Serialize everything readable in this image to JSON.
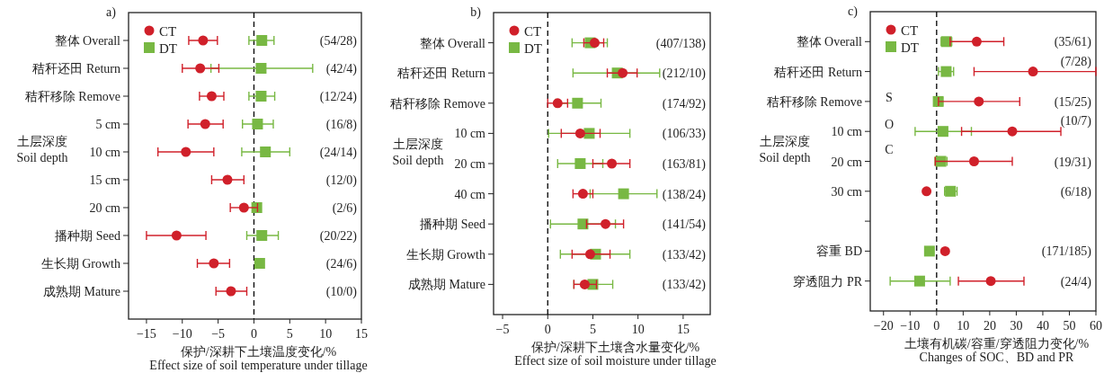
{
  "chart_data": [
    {
      "type": "scatter",
      "orientation": "horizontal",
      "title": "a)",
      "xlabel": "保护/深耕下土壤温度变化/%\nEffect size of soil temperature under tillage",
      "categories": [
        "整体 Overall",
        "秸秆还田 Return",
        "秸秆移除 Remove",
        "5 cm",
        "10 cm",
        "15 cm",
        "20 cm",
        "播种期 Seed",
        "生长期 Growth",
        "成熟期 Mature"
      ],
      "series": [
        {
          "name": "CT",
          "color": "#d0202a",
          "marker": "circle",
          "values": [
            -7.1,
            -7.5,
            -5.9,
            -6.8,
            -9.5,
            -3.7,
            -1.4,
            -10.8,
            -5.6,
            -3.2
          ],
          "errors": [
            [
              -9.1,
              -5.1
            ],
            [
              -10.0,
              -4.9
            ],
            [
              -7.6,
              -4.2
            ],
            [
              -9.2,
              -4.3
            ],
            [
              -13.4,
              -5.6
            ],
            [
              -5.9,
              -1.4
            ],
            [
              -3.3,
              0.5
            ],
            [
              -15.0,
              -6.7
            ],
            [
              -7.9,
              -3.4
            ],
            [
              -5.3,
              -1.0
            ]
          ]
        },
        {
          "name": "DT",
          "color": "#78b843",
          "marker": "square",
          "values": [
            1.1,
            1.0,
            1.0,
            0.5,
            1.6,
            null,
            0.4,
            1.1,
            0.8,
            null
          ],
          "errors": [
            [
              -0.7,
              2.8
            ],
            [
              -6.0,
              8.2
            ],
            [
              -0.7,
              2.9
            ],
            [
              -1.6,
              2.7
            ],
            [
              -1.7,
              5.0
            ],
            null,
            [
              -0.1,
              0.9
            ],
            [
              -1.0,
              3.4
            ],
            null,
            null
          ]
        }
      ],
      "xlim": [
        -17.5,
        15
      ],
      "xticks": [
        -15,
        -10,
        -5,
        0,
        5,
        10,
        15
      ],
      "ref_lines": [
        {
          "axis": "x",
          "value": 0,
          "line_style": "dashed",
          "color": "#000000"
        }
      ],
      "legend": "top left",
      "annotations": [
        "(54/28)",
        "(42/4)",
        "(12/24)",
        "(16/8)",
        "(24/14)",
        "(12/0)",
        "(2/6)",
        "(20/22)",
        "(24/6)",
        "(10/0)",
        "土层深度\nSoil depth"
      ]
    },
    {
      "type": "scatter",
      "orientation": "horizontal",
      "title": "b)",
      "xlabel": "保护/深耕下土壤含水量变化/%\nEffect size of soil moisture under tillage",
      "categories": [
        "整体 Overall",
        "秸秆还田 Return",
        "秸秆移除 Remove",
        "10 cm",
        "20 cm",
        "40 cm",
        "播种期 Seed",
        "生长期 Growth",
        "成熟期 Mature"
      ],
      "series": [
        {
          "name": "CT",
          "color": "#d0202a",
          "marker": "circle",
          "values": [
            5.2,
            8.3,
            1.1,
            3.6,
            7.1,
            3.9,
            6.4,
            4.7,
            4.1
          ],
          "errors": [
            [
              4.0,
              6.2
            ],
            [
              6.6,
              9.9
            ],
            [
              0,
              2.2
            ],
            [
              1.5,
              5.8
            ],
            [
              5.0,
              9.1
            ],
            [
              2.8,
              5.0
            ],
            [
              4.3,
              8.4
            ],
            [
              2.7,
              6.9
            ],
            [
              2.9,
              5.4
            ]
          ]
        },
        {
          "name": "DT",
          "color": "#78b843",
          "marker": "square",
          "values": [
            4.7,
            7.7,
            3.3,
            4.6,
            3.6,
            8.4,
            3.9,
            5.3,
            5.0
          ],
          "errors": [
            [
              2.7,
              6.6
            ],
            [
              2.8,
              12.4
            ],
            [
              0.9,
              5.9
            ],
            [
              0.1,
              9.1
            ],
            [
              1.1,
              6.1
            ],
            [
              4.7,
              12.1
            ],
            [
              0.3,
              7.5
            ],
            [
              1.4,
              9.1
            ],
            [
              2.9,
              7.2
            ]
          ]
        }
      ],
      "xlim": [
        -6,
        18
      ],
      "xticks": [
        -5,
        0,
        5,
        10,
        15
      ],
      "ref_lines": [
        {
          "axis": "x",
          "value": 0,
          "line_style": "dashed",
          "color": "#000000"
        }
      ],
      "legend": "top left",
      "annotations": [
        "(407/138)",
        "(212/10)",
        "(174/92)",
        "(106/33)",
        "(163/81)",
        "(138/24)",
        "(141/54)",
        "(133/42)",
        "(133/42)",
        "土层深度\nSoil depth"
      ]
    },
    {
      "type": "scatter",
      "orientation": "horizontal",
      "title": "c)",
      "xlabel": "土壤有机碳/容重/穿透阻力变化/%\nChanges of SOC、BD and PR",
      "categories": [
        "整体 Overall",
        "秸秆还田 Return",
        "秸秆移除 Remove",
        "10 cm",
        "20 cm",
        "30 cm",
        null,
        "容重 BD",
        "穿透阻力 PR"
      ],
      "series": [
        {
          "name": "CT",
          "color": "#d0202a",
          "marker": "circle",
          "values": [
            15.1,
            36.3,
            15.9,
            28.5,
            14.1,
            -3.8,
            null,
            3.2,
            20.4
          ],
          "errors": [
            [
              5.1,
              25.3
            ],
            [
              14.1,
              60
            ],
            [
              0.7,
              31.3
            ],
            [
              9.4,
              46.8
            ],
            [
              -0.5,
              28.5
            ],
            null,
            null,
            null,
            [
              8.2,
              32.9
            ]
          ]
        },
        {
          "name": "DT",
          "color": "#78b843",
          "marker": "square",
          "values": [
            3.7,
            3.6,
            0.6,
            2.4,
            1.6,
            5.2,
            null,
            -2.7,
            -6.4
          ],
          "errors": [
            [
              1.7,
              5.7
            ],
            [
              0.7,
              6.4
            ],
            [
              -0.9,
              2.3
            ],
            [
              -8.1,
              13.1
            ],
            [
              -0.6,
              3.9
            ],
            [
              3.0,
              7.7
            ],
            null,
            null,
            [
              -17.5,
              5.1
            ]
          ]
        }
      ],
      "xlim": [
        -25,
        60
      ],
      "xticks": [
        -20,
        -10,
        0,
        10,
        20,
        30,
        40,
        50,
        60
      ],
      "ref_lines": [
        {
          "axis": "x",
          "value": 0,
          "line_style": "dashed",
          "color": "#000000"
        }
      ],
      "legend": "top left",
      "annotations": [
        "(35/61)",
        "(7/28)",
        "(15/25)",
        "(10/7)",
        "(19/31)",
        "(6/18)",
        "(171/185)",
        "(24/4)",
        "土层深度\nSoil depth",
        "S",
        "O",
        "C"
      ]
    }
  ]
}
